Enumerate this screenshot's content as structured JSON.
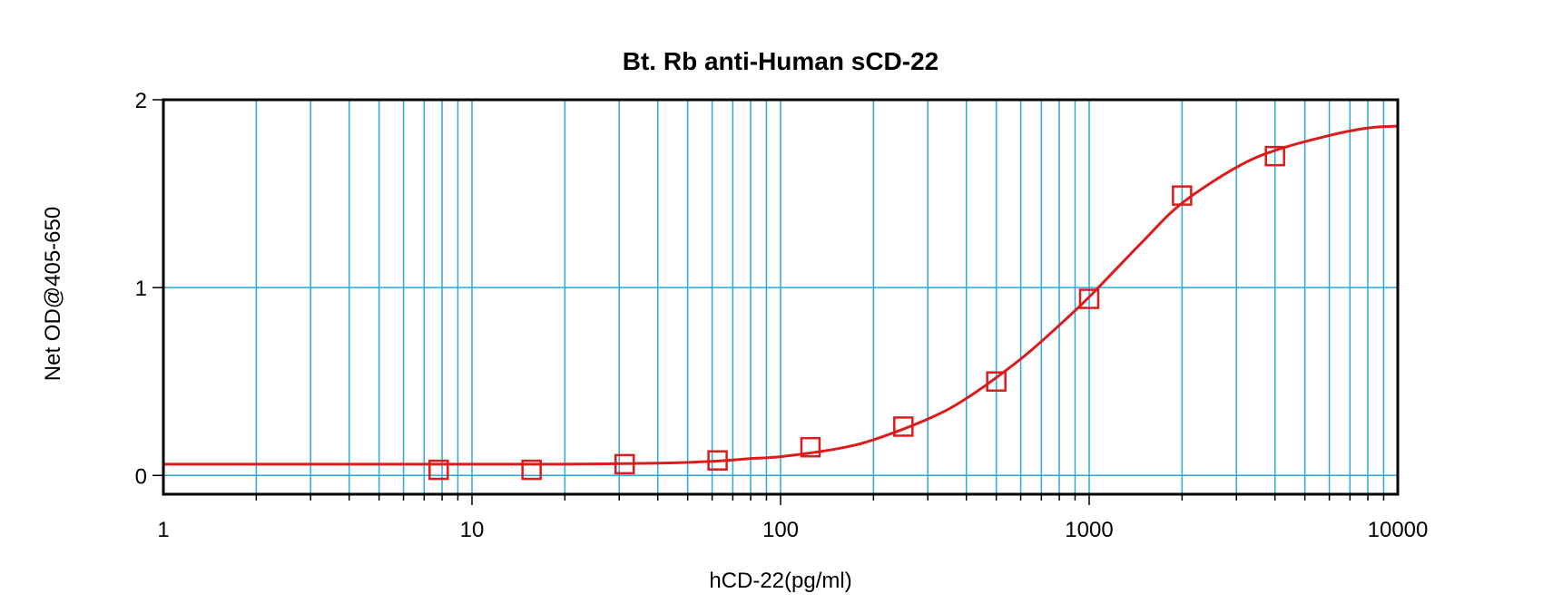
{
  "chart_data": {
    "type": "scatter",
    "title": "Bt. Rb anti-Human sCD-22",
    "xlabel": "hCD-22(pg/ml)",
    "ylabel": "Net OD@405-650",
    "x_scale": "log",
    "xlim": [
      1,
      10000
    ],
    "ylim": [
      -0.1,
      2
    ],
    "x_ticks": [
      1,
      10,
      100,
      1000,
      10000
    ],
    "x_tick_labels": [
      "1",
      "10",
      "100",
      "1000",
      "10000"
    ],
    "y_ticks": [
      0,
      1,
      2
    ],
    "y_tick_labels": [
      "0",
      "1",
      "2"
    ],
    "grid": true,
    "colors": {
      "grid": "#29a8e0",
      "series": "#dd1b1b",
      "frame": "#000000"
    },
    "series": [
      {
        "marker": "square",
        "x": [
          7.8,
          15.6,
          31.25,
          62.5,
          125,
          250,
          500,
          1000,
          2000,
          4000
        ],
        "y": [
          0.03,
          0.03,
          0.06,
          0.08,
          0.15,
          0.26,
          0.5,
          0.94,
          1.49,
          1.7
        ]
      },
      {
        "line": "fit",
        "x": [
          1,
          2,
          5,
          10,
          20,
          40,
          60,
          80,
          100,
          150,
          200,
          300,
          400,
          600,
          800,
          1000,
          1500,
          2000,
          3000,
          4000,
          6000,
          8000,
          10000
        ],
        "y": [
          0.06,
          0.06,
          0.06,
          0.06,
          0.06,
          0.065,
          0.075,
          0.09,
          0.1,
          0.14,
          0.19,
          0.3,
          0.41,
          0.62,
          0.8,
          0.95,
          1.25,
          1.45,
          1.64,
          1.73,
          1.81,
          1.85,
          1.86
        ]
      }
    ]
  }
}
